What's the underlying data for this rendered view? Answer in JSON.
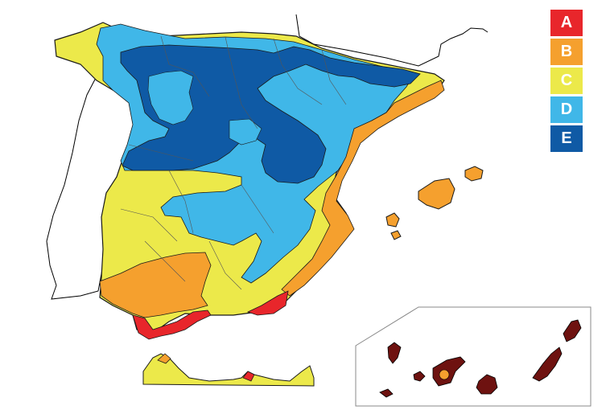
{
  "map": {
    "zones": [
      {
        "key": "A",
        "label": "A",
        "color": "#e8262b"
      },
      {
        "key": "B",
        "label": "B",
        "color": "#f5a02e"
      },
      {
        "key": "C",
        "label": "C",
        "color": "#ece94a"
      },
      {
        "key": "D",
        "label": "D",
        "color": "#40b7e8"
      },
      {
        "key": "E",
        "label": "E",
        "color": "#0f5aa5"
      }
    ],
    "canary_zone_color": "#6e1210",
    "border_color": "#1a1a1a",
    "land_outline_color": "#000000"
  }
}
